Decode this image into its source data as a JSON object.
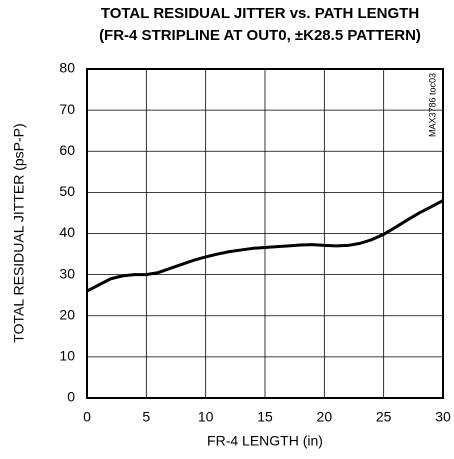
{
  "chart_data": {
    "type": "line",
    "title": [
      "TOTAL RESIDUAL JITTER vs. PATH LENGTH",
      "(FR-4 STRIPLINE AT OUT0, ±K28.5 PATTERN)"
    ],
    "xlabel": "FR-4 LENGTH (in)",
    "ylabel": "TOTAL RESIDUAL JITTER (psP-P)",
    "annotation": "MAX3786 toc03",
    "x": [
      0,
      1,
      2,
      3,
      4,
      5,
      6,
      7,
      8,
      9,
      10,
      11,
      12,
      13,
      14,
      15,
      16,
      17,
      18,
      19,
      20,
      21,
      22,
      23,
      24,
      25,
      26,
      27,
      28,
      29,
      30
    ],
    "series": [
      {
        "color": "#000000",
        "values": [
          26,
          27.5,
          29,
          29.7,
          30,
          30,
          30.5,
          31.5,
          32.5,
          33.5,
          34.3,
          35,
          35.6,
          36,
          36.4,
          36.6,
          36.8,
          37,
          37.2,
          37.3,
          37.1,
          37,
          37.1,
          37.6,
          38.5,
          39.8,
          41.5,
          43.3,
          45,
          46.5,
          48
        ]
      }
    ],
    "xlim": [
      0,
      30
    ],
    "xticks": [
      0,
      5,
      10,
      15,
      20,
      25,
      30
    ],
    "ylim": [
      0,
      80
    ],
    "yticks": [
      0,
      10,
      20,
      30,
      40,
      50,
      60,
      70,
      80
    ],
    "grid": true
  }
}
